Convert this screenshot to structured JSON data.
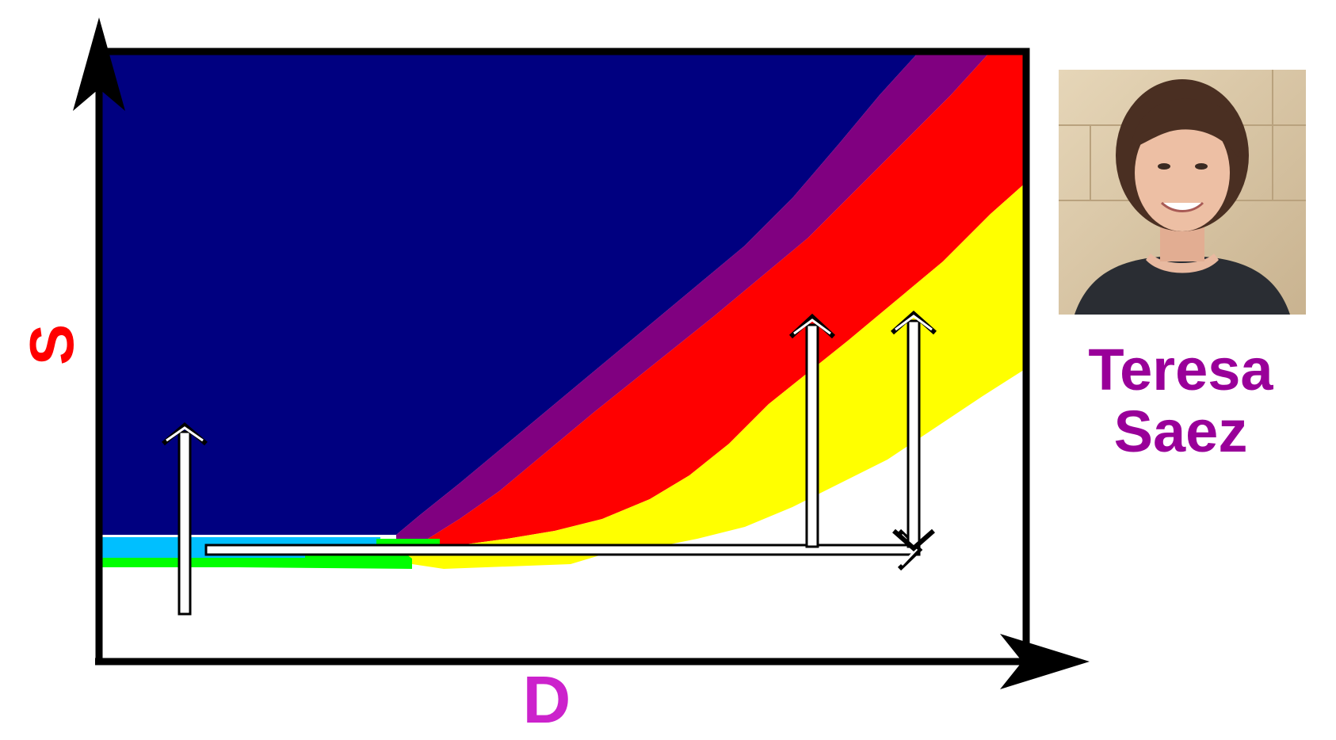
{
  "diagram": {
    "y_axis_label": "S",
    "x_axis_label": "D",
    "person": {
      "first_name": "Teresa",
      "last_name": "Saez"
    },
    "regions": [
      {
        "name": "dark-blue-region",
        "color": "#000080"
      },
      {
        "name": "purple-region",
        "color": "#800080"
      },
      {
        "name": "red-region",
        "color": "#ff0000"
      },
      {
        "name": "yellow-region",
        "color": "#ffff00"
      },
      {
        "name": "light-blue-strip",
        "color": "#00bfff"
      },
      {
        "name": "green-strip",
        "color": "#00ff00"
      },
      {
        "name": "white-region",
        "color": "#ffffff"
      }
    ],
    "colors": {
      "axis": "#000000",
      "y_label": "#ff0000",
      "x_label": "#cc22cc",
      "name": "#990099",
      "arrow_fill": "#ffffff",
      "arrow_stroke": "#000000"
    },
    "photo_icon": "portrait-photo"
  }
}
